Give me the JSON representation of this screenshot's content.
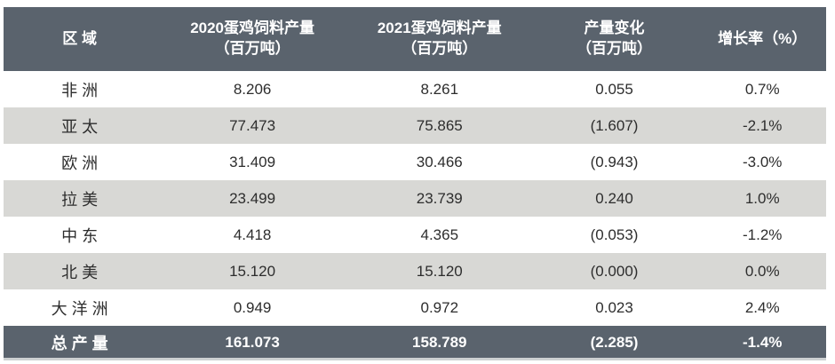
{
  "table": {
    "columns": [
      {
        "label": "区 域",
        "sub": ""
      },
      {
        "label": "2020蛋鸡饲料产量",
        "sub": "（百万吨）"
      },
      {
        "label": "2021蛋鸡饲料产量",
        "sub": "（百万吨）"
      },
      {
        "label": "产量变化",
        "sub": "（百万吨）"
      },
      {
        "label": "增长率（%）",
        "sub": ""
      }
    ],
    "rows": [
      {
        "region": "非 洲",
        "y2020": "8.206",
        "y2021": "8.261",
        "change": "0.055",
        "growth": "0.7%"
      },
      {
        "region": "亚 太",
        "y2020": "77.473",
        "y2021": "75.865",
        "change": "(1.607)",
        "growth": "-2.1%"
      },
      {
        "region": "欧 洲",
        "y2020": "31.409",
        "y2021": "30.466",
        "change": "(0.943)",
        "growth": "-3.0%"
      },
      {
        "region": "拉 美",
        "y2020": "23.499",
        "y2021": "23.739",
        "change": "0.240",
        "growth": "1.0%"
      },
      {
        "region": "中 东",
        "y2020": "4.418",
        "y2021": "4.365",
        "change": "(0.053)",
        "growth": "-1.2%"
      },
      {
        "region": "北 美",
        "y2020": "15.120",
        "y2021": "15.120",
        "change": "(0.000)",
        "growth": "0.0%"
      },
      {
        "region": "大 洋 洲",
        "y2020": "0.949",
        "y2021": "0.972",
        "change": "0.023",
        "growth": "2.4%"
      }
    ],
    "total": {
      "region": "总 产 量",
      "y2020": "161.073",
      "y2021": "158.789",
      "change": "(2.285)",
      "growth": "-1.4%"
    }
  },
  "colors": {
    "header_bg": "#5a636d",
    "stripe_bg": "#d8d8d5",
    "row_bg": "#ffffff",
    "header_text": "#ffffff",
    "body_text": "#2d2d2d"
  },
  "chart_data": {
    "type": "table",
    "title": "",
    "columns": [
      "区域",
      "2020蛋鸡饲料产量（百万吨）",
      "2021蛋鸡饲料产量（百万吨）",
      "产量变化（百万吨）",
      "增长率（%）"
    ],
    "rows": [
      [
        "非洲",
        8.206,
        8.261,
        0.055,
        "0.7%"
      ],
      [
        "亚太",
        77.473,
        75.865,
        -1.607,
        "-2.1%"
      ],
      [
        "欧洲",
        31.409,
        30.466,
        -0.943,
        "-3.0%"
      ],
      [
        "拉美",
        23.499,
        23.739,
        0.24,
        "1.0%"
      ],
      [
        "中东",
        4.418,
        4.365,
        -0.053,
        "-1.2%"
      ],
      [
        "北美",
        15.12,
        15.12,
        0.0,
        "0.0%"
      ],
      [
        "大洋洲",
        0.949,
        0.972,
        0.023,
        "2.4%"
      ],
      [
        "总产量",
        161.073,
        158.789,
        -2.285,
        "-1.4%"
      ]
    ]
  }
}
